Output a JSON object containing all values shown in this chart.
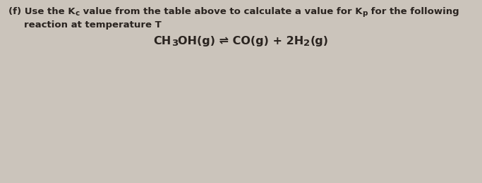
{
  "background_color": "#cbc4bb",
  "text_color": "#2a2420",
  "font_size_body": 9.5,
  "font_size_eq": 11.5,
  "line1": "(f) Use the K",
  "line1_sub1": "c",
  "line1_mid": " value from the table above to calculate a value for K",
  "line1_sub2": "p",
  "line1_end": " for the following",
  "line2": "reaction at temperature T",
  "eq_part1": "CH",
  "eq_sub1": "3",
  "eq_part2": "OH(g) ⇌ CO(g) + 2H",
  "eq_sub2": "2",
  "eq_part3": "(g)"
}
